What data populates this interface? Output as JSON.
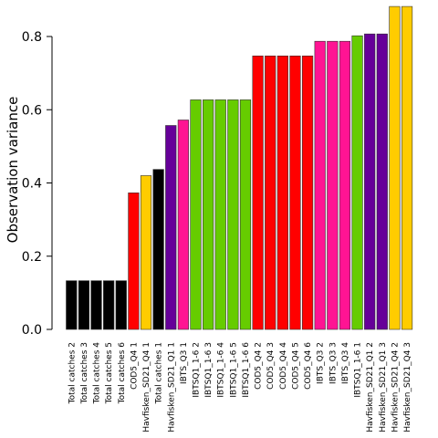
{
  "chart_data": {
    "type": "bar",
    "ylabel": "Observation variance",
    "xlabel": "",
    "ylim": [
      0,
      0.8
    ],
    "yticks": [
      "0.0",
      "0.2",
      "0.4",
      "0.6",
      "0.8"
    ],
    "grid": false,
    "legend": "none",
    "categories": [
      "Total catches 2",
      "Total catches 3",
      "Total catches 4",
      "Total catches 5",
      "Total catches 6",
      "COD5_Q4 1",
      "Havfisken_SD21_Q4 1",
      "Total catches 1",
      "Havfisken_SD21_Q1 1",
      "IBTS_Q3 1",
      "IBTSQ1_1-6 2",
      "IBTSQ1_1-6 3",
      "IBTSQ1_1-6 4",
      "IBTSQ1_1-6 5",
      "IBTSQ1_1-6 6",
      "COD5_Q4 2",
      "COD5_Q4 3",
      "COD5_Q4 4",
      "COD5_Q4 5",
      "COD5_Q4 6",
      "IBTS_Q3 2",
      "IBTS_Q3 3",
      "IBTS_Q3 4",
      "IBTSQ1_1-6 1",
      "Havfisken_SD21_Q1 2",
      "Havfisken_SD21_Q1 3",
      "Havfisken_SD21_Q4 2",
      "Havfisken_SD21_Q4 3"
    ],
    "values": [
      0.133,
      0.133,
      0.133,
      0.133,
      0.133,
      0.373,
      0.42,
      0.437,
      0.557,
      0.572,
      0.627,
      0.627,
      0.627,
      0.627,
      0.627,
      0.747,
      0.747,
      0.747,
      0.747,
      0.747,
      0.787,
      0.787,
      0.787,
      0.802,
      0.807,
      0.807,
      0.882,
      0.882
    ],
    "colors": [
      "#000000",
      "#000000",
      "#000000",
      "#000000",
      "#000000",
      "#ff0000",
      "#ffcc00",
      "#000000",
      "#660099",
      "#ff1493",
      "#66cc00",
      "#66cc00",
      "#66cc00",
      "#66cc00",
      "#66cc00",
      "#ff0000",
      "#ff0000",
      "#ff0000",
      "#ff0000",
      "#ff0000",
      "#ff1493",
      "#ff1493",
      "#ff1493",
      "#66cc00",
      "#660099",
      "#660099",
      "#ffcc00",
      "#ffcc00"
    ]
  }
}
